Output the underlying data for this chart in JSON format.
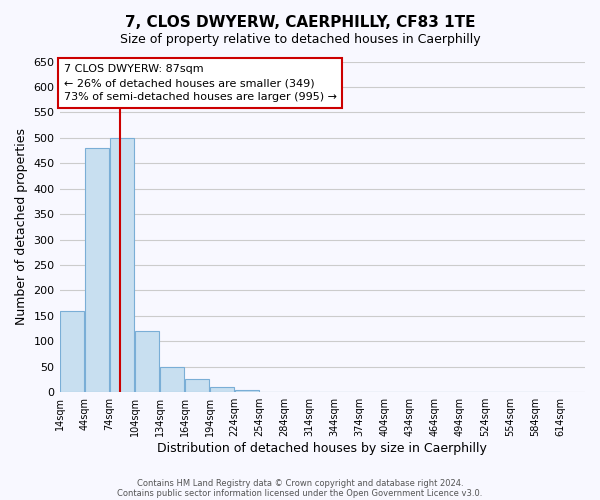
{
  "title": "7, CLOS DWYERW, CAERPHILLY, CF83 1TE",
  "subtitle": "Size of property relative to detached houses in Caerphilly",
  "xlabel": "Distribution of detached houses by size in Caerphilly",
  "ylabel": "Number of detached properties",
  "footnote1": "Contains HM Land Registry data © Crown copyright and database right 2024.",
  "footnote2": "Contains public sector information licensed under the Open Government Licence v3.0.",
  "bins": [
    14,
    44,
    74,
    104,
    134,
    164,
    194,
    224,
    254,
    284,
    314,
    344,
    374,
    404,
    434,
    464,
    494,
    524,
    554,
    584,
    614
  ],
  "counts": [
    160,
    480,
    500,
    120,
    50,
    25,
    10,
    5,
    0,
    0,
    0,
    0,
    0,
    0,
    0,
    0,
    0,
    0,
    0,
    0
  ],
  "bar_color": "#c8dff0",
  "bar_edge_color": "#7aaed6",
  "property_size": 87,
  "property_line_color": "#cc0000",
  "annotation_title": "7 CLOS DWYERW: 87sqm",
  "annotation_line1": "← 26% of detached houses are smaller (349)",
  "annotation_line2": "73% of semi-detached houses are larger (995) →",
  "annotation_box_color": "#ffffff",
  "annotation_box_edge": "#cc0000",
  "ylim": [
    0,
    650
  ],
  "yticks": [
    0,
    50,
    100,
    150,
    200,
    250,
    300,
    350,
    400,
    450,
    500,
    550,
    600,
    650
  ],
  "tick_labels": [
    "14sqm",
    "44sqm",
    "74sqm",
    "104sqm",
    "134sqm",
    "164sqm",
    "194sqm",
    "224sqm",
    "254sqm",
    "284sqm",
    "314sqm",
    "344sqm",
    "374sqm",
    "404sqm",
    "434sqm",
    "464sqm",
    "494sqm",
    "524sqm",
    "554sqm",
    "584sqm",
    "614sqm"
  ],
  "background_color": "#f8f8ff",
  "grid_color": "#cccccc"
}
